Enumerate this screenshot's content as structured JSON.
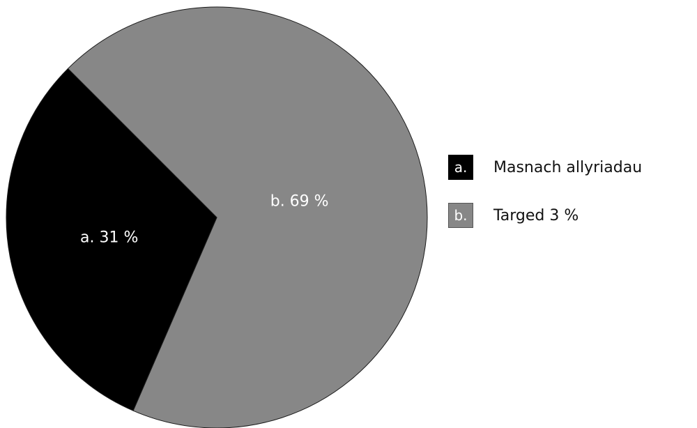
{
  "chart_data": {
    "type": "pie",
    "slices": [
      {
        "letter": "a.",
        "name": "Masnach allyriadau",
        "value": 31,
        "label": "a. 31 %",
        "color": "#000000"
      },
      {
        "letter": "b.",
        "name": "Targed 3 %",
        "value": 69,
        "label": "b. 69 %",
        "color": "#878787"
      }
    ],
    "legend_position": "right"
  }
}
